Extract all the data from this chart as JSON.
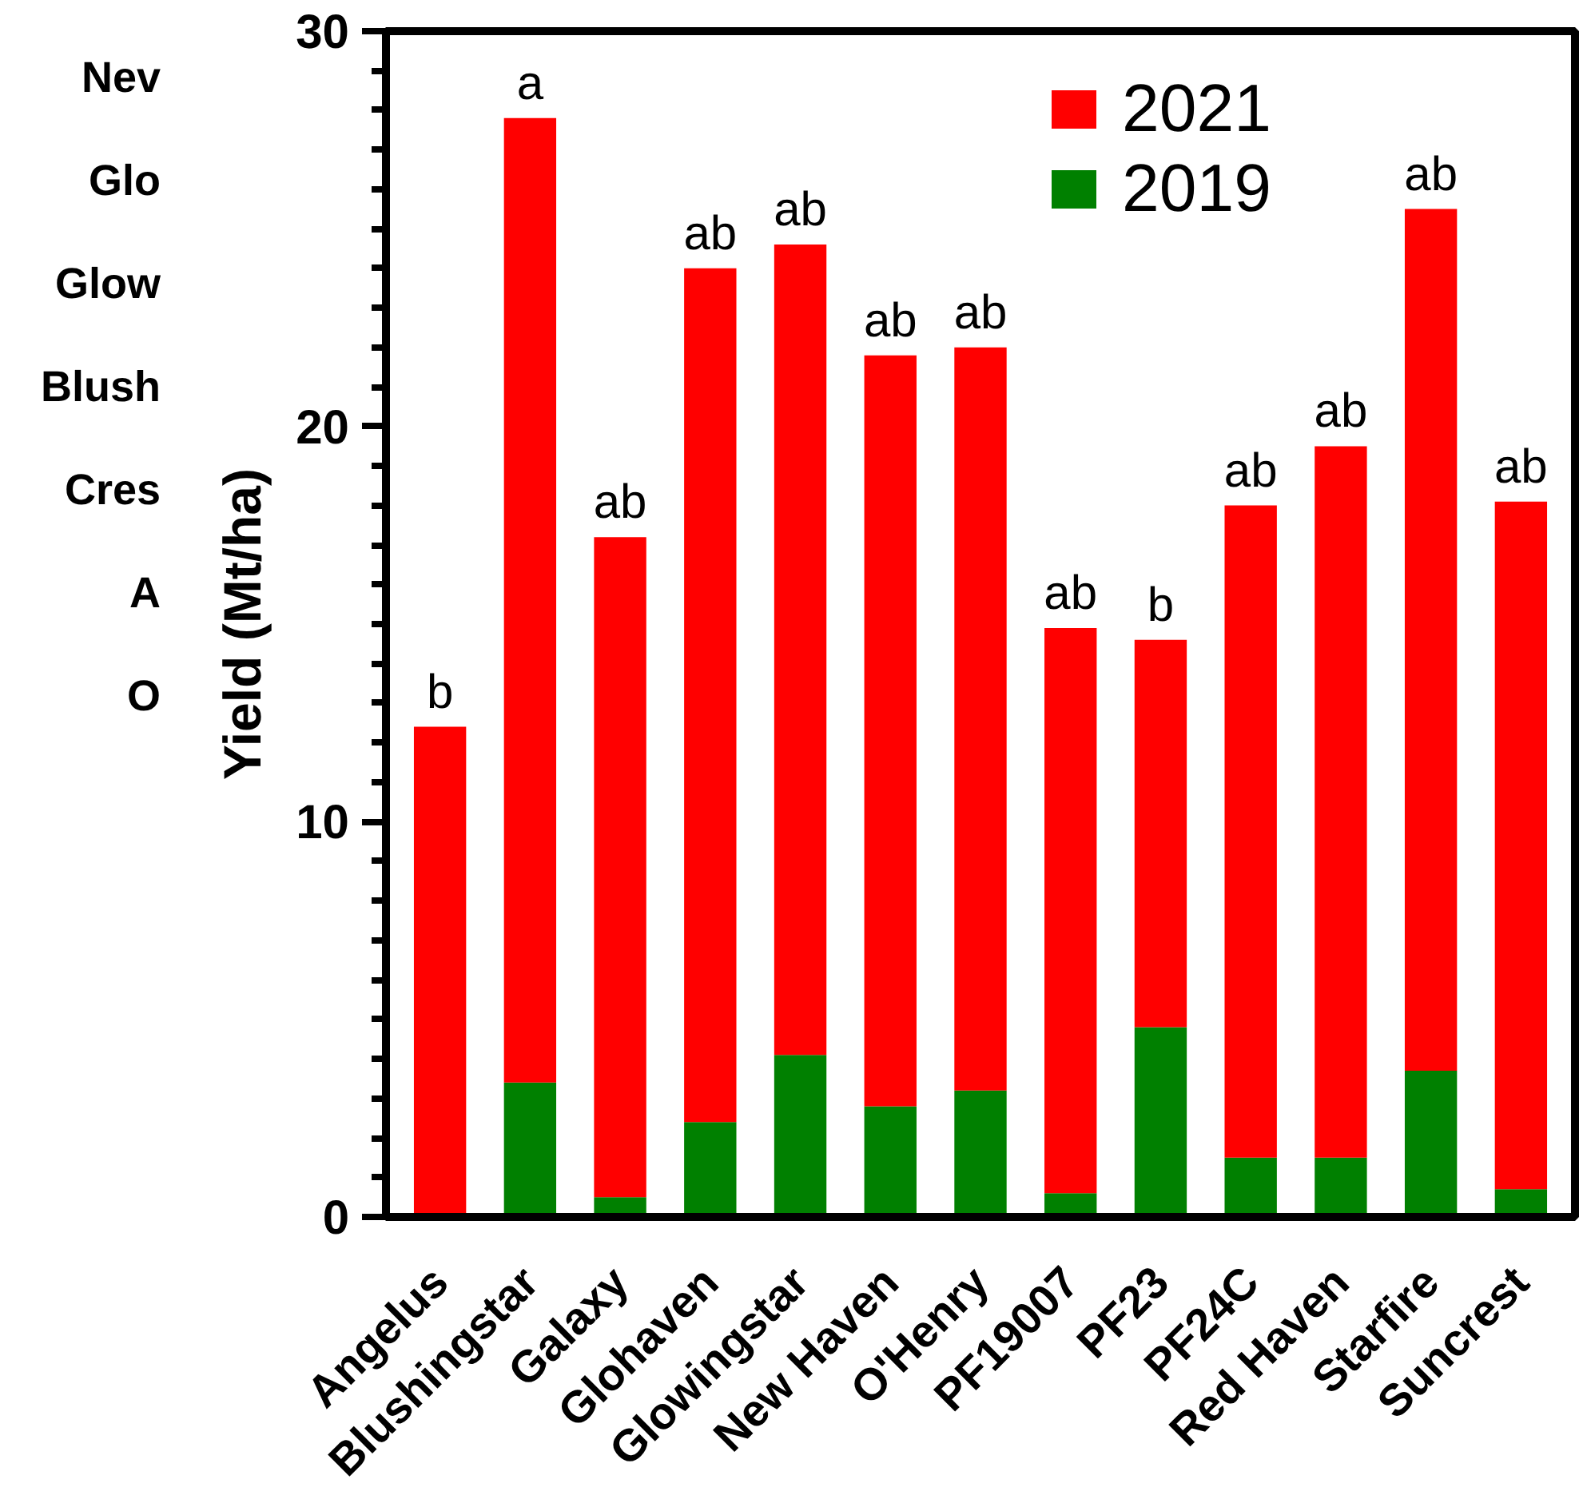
{
  "chart_data": {
    "type": "bar",
    "ylabel": "Yield (Mt/ha)",
    "categories": [
      "Angelus",
      "Blushingstar",
      "Galaxy",
      "Glohaven",
      "Glowingstar",
      "New Haven",
      "O'Henry",
      "PF19007",
      "PF23",
      "PF24C",
      "Red Haven",
      "Starfire",
      "Suncrest"
    ],
    "series": [
      {
        "name": "2019",
        "color": "#008000",
        "values": [
          null,
          3.4,
          0.5,
          2.4,
          4.1,
          2.8,
          3.2,
          0.6,
          4.8,
          1.5,
          1.5,
          3.7,
          0.7
        ]
      },
      {
        "name": "2021",
        "color": "#ff0000",
        "values": [
          12.4,
          24.4,
          16.7,
          21.6,
          20.5,
          19.0,
          18.8,
          14.3,
          9.8,
          16.5,
          18.0,
          21.8,
          17.4
        ]
      }
    ],
    "stacked": true,
    "ylim": [
      0,
      30
    ],
    "yticks": [
      0,
      {
        "value": 1,
        "label": null
      },
      {
        "value": 2,
        "label": null
      },
      {
        "value": 3,
        "label": null
      },
      {
        "value": 4,
        "label": null
      },
      {
        "value": 5,
        "label": null
      },
      {
        "value": 6,
        "label": null
      },
      {
        "value": 7,
        "label": null
      },
      {
        "value": 8,
        "label": null
      },
      {
        "value": 9,
        "label": null
      },
      10,
      {
        "value": 11,
        "label": null
      },
      {
        "value": 12,
        "label": null
      },
      {
        "value": 13,
        "label": null
      },
      {
        "value": 14,
        "label": null
      },
      {
        "value": 15,
        "label": null
      },
      {
        "value": 16,
        "label": null
      },
      {
        "value": 17,
        "label": null
      },
      {
        "value": 18,
        "label": null
      },
      {
        "value": 19,
        "label": null
      },
      20,
      {
        "value": 21,
        "label": null
      },
      {
        "value": 22,
        "label": null
      },
      {
        "value": 23,
        "label": null
      },
      {
        "value": 24,
        "label": null
      },
      {
        "value": 25,
        "label": null
      },
      {
        "value": 26,
        "label": null
      },
      {
        "value": 27,
        "label": null
      },
      {
        "value": 28,
        "label": null
      },
      {
        "value": 29,
        "label": null
      },
      30
    ],
    "grid": false,
    "legend": "top right",
    "annotations": [
      {
        "text": "b",
        "x": "Angelus",
        "y": 12.4
      },
      {
        "text": "a",
        "x": "Blushingstar",
        "y": 27.8
      },
      {
        "text": "ab",
        "x": "Galaxy",
        "y": 17.2
      },
      {
        "text": "ab",
        "x": "Glohaven",
        "y": 24.0
      },
      {
        "text": "ab",
        "x": "Glowingstar",
        "y": 24.6
      },
      {
        "text": "ab",
        "x": "New Haven",
        "y": 21.8
      },
      {
        "text": "ab",
        "x": "O'Henry",
        "y": 22.0
      },
      {
        "text": "ab",
        "x": "PF19007",
        "y": 14.9
      },
      {
        "text": "b",
        "x": "PF23",
        "y": 14.6
      },
      {
        "text": "ab",
        "x": "PF24C",
        "y": 18.0
      },
      {
        "text": "ab",
        "x": "Red Haven",
        "y": 19.5
      },
      {
        "text": "ab",
        "x": "Starfire",
        "y": 25.5
      },
      {
        "text": "ab",
        "x": "Suncrest",
        "y": 18.1
      },
      "Nev",
      "Glo",
      "Glow",
      "Blush",
      "Cres",
      "A",
      "O"
    ]
  }
}
